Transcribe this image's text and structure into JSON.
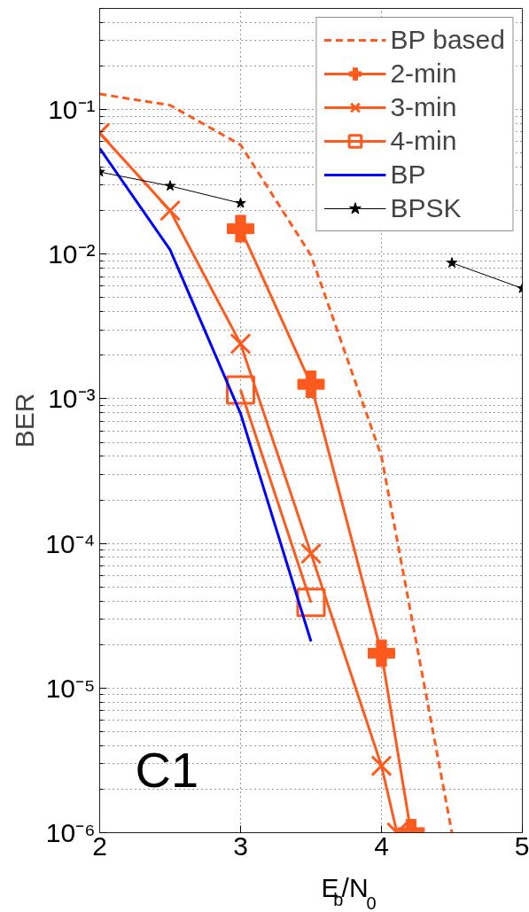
{
  "chart_data": {
    "type": "line",
    "xlabel": "E$_{b}$/N$_{0}$",
    "ylabel": "BER",
    "log": "y",
    "xlim": [
      2,
      5
    ],
    "xticks": [
      2,
      3,
      4,
      5
    ],
    "ylim": [
      1e-06,
      0.5
    ],
    "yticks": [
      {
        "value": 1e-06,
        "label": "10⁻⁶"
      },
      {
        "value": 1e-05,
        "label": "10⁻⁵"
      },
      {
        "value": 0.0001,
        "label": "10⁻⁴"
      },
      {
        "value": 0.001,
        "label": "10⁻³"
      },
      {
        "value": 0.01,
        "label": "10⁻²"
      },
      {
        "value": 0.1,
        "label": "10⁻¹"
      }
    ],
    "grid": true,
    "legend": "top right",
    "annotations": [
      "C1"
    ],
    "series": [
      {
        "name": "BP based",
        "color": "#ff5a1e",
        "line_style": "dashed",
        "marker": "none",
        "x": [
          2,
          2.5,
          3,
          3.5,
          4,
          4.5
        ],
        "values": [
          0.128,
          0.107,
          0.057,
          0.0098,
          0.0004,
          1e-06
        ]
      },
      {
        "name": "2-min",
        "color": "#ff5a1e",
        "line_style": "solid",
        "marker": "cross",
        "x": [
          3,
          3.5,
          4,
          4.21
        ],
        "values": [
          0.015,
          0.00126,
          1.74e-05,
          1e-06
        ]
      },
      {
        "name": "3-min",
        "color": "#ff5a1e",
        "line_style": "solid",
        "marker": "x",
        "x": [
          2,
          2.5,
          3,
          3.5,
          4,
          4.11
        ],
        "values": [
          0.0686,
          0.02,
          0.0024,
          8.5e-05,
          2.9e-06,
          1e-06
        ]
      },
      {
        "name": "4-min",
        "color": "#ff5a1e",
        "line_style": "solid",
        "marker": "square",
        "x": [
          3,
          3.5
        ],
        "values": [
          0.00115,
          3.9e-05
        ]
      },
      {
        "name": "BP",
        "color": "#0000ff",
        "line_style": "solid",
        "marker": "none",
        "x": [
          2,
          2.5,
          3,
          3.5
        ],
        "values": [
          0.054,
          0.0107,
          0.00079,
          2.1e-05
        ]
      },
      {
        "name": "BPSK",
        "color": "#000000",
        "line_style": "solid",
        "marker": "star",
        "x": [
          2,
          2.5,
          3,
          3.5,
          4,
          4.5,
          5
        ],
        "values": [
          0.037,
          0.0296,
          0.0225,
          null,
          null,
          0.0087,
          0.0058
        ]
      }
    ]
  }
}
